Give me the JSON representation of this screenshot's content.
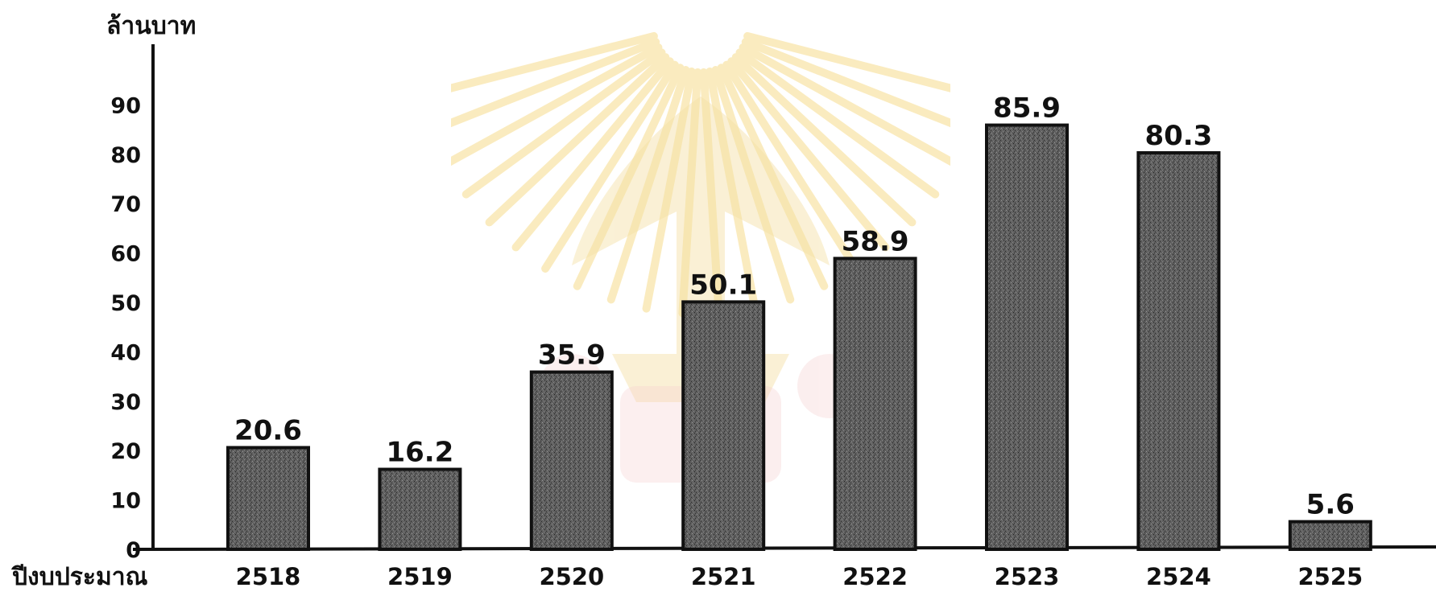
{
  "chart_data": {
    "type": "bar",
    "title": "",
    "ylabel": "ล้านบาท",
    "xlabel": "ปีงบประมาณ",
    "categories": [
      "2518",
      "2519",
      "2520",
      "2521",
      "2522",
      "2523",
      "2524",
      "2525"
    ],
    "series": [
      {
        "values": [
          20.6,
          16.2,
          35.9,
          50.1,
          58.9,
          85.9,
          80.3,
          5.6
        ],
        "value_labels": [
          "20.6",
          "16.2",
          "35.9",
          "50.1",
          "58.9",
          "85.9",
          "80.3",
          "5.6"
        ]
      }
    ],
    "yticks": [
      "0",
      "10",
      "20",
      "30",
      "40",
      "50",
      "60",
      "70",
      "80",
      "90"
    ],
    "ylim": [
      0,
      100
    ],
    "grid": false,
    "legend": "none",
    "colors": {
      "bar_fill": "#5f5f5f",
      "bar_stroke": "#111111",
      "axis": "#111111",
      "text": "#111111",
      "watermark": "#f3d27a"
    }
  }
}
